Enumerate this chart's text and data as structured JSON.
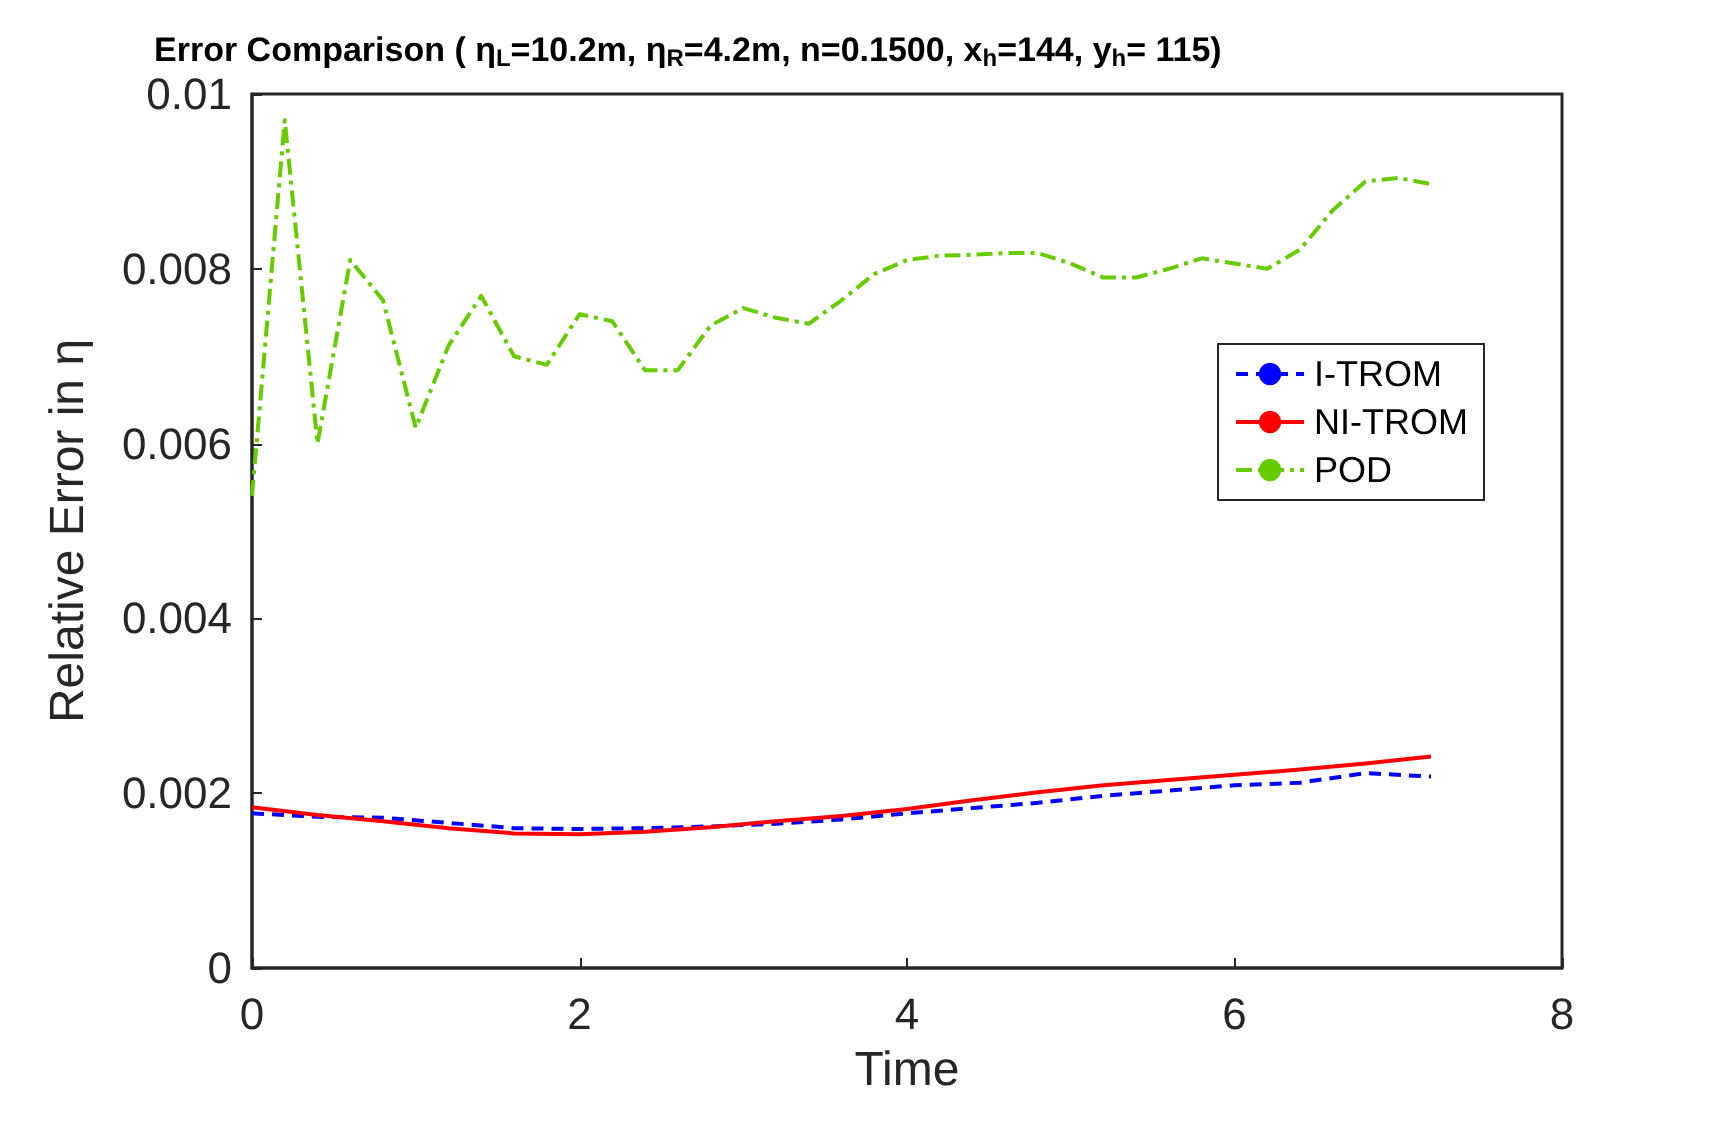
{
  "chart_data": {
    "type": "line",
    "title": "Error Comparison ( η$_{L}$=10.2m, η$_{R}$=4.2m, n=0.1500, x$_{h}$=144, y$_{h}$= 115)",
    "xlabel": "Time",
    "ylabel": "Relative Error in η",
    "xlim": [
      0,
      8
    ],
    "xticks": [
      0,
      2,
      4,
      6,
      8
    ],
    "ylim": [
      0,
      0.01
    ],
    "yticks": [
      0,
      0.002,
      0.004,
      0.006,
      0.008,
      0.01
    ],
    "grid": false,
    "legend": "right",
    "marker": "none",
    "series": [
      {
        "name": "I-TROM",
        "color": "#0000ff",
        "line_style": "dashed",
        "x": [
          0,
          0.4,
          0.8,
          1.2,
          1.6,
          2.0,
          2.4,
          2.8,
          3.2,
          3.6,
          4.0,
          4.4,
          4.8,
          5.2,
          5.6,
          6.0,
          6.4,
          6.8,
          7.2
        ],
        "values": [
          0.00177,
          0.00173,
          0.00172,
          0.00166,
          0.0016,
          0.00159,
          0.0016,
          0.00162,
          0.00165,
          0.0017,
          0.00177,
          0.00183,
          0.00189,
          0.00197,
          0.00203,
          0.00209,
          0.00212,
          0.00223,
          0.00219
        ]
      },
      {
        "name": "NI-TROM",
        "color": "#ff0000",
        "line_style": "solid",
        "x": [
          0,
          0.4,
          0.8,
          1.2,
          1.6,
          2.0,
          2.4,
          2.8,
          3.2,
          3.6,
          4.0,
          4.4,
          4.8,
          5.2,
          5.6,
          6.0,
          6.4,
          6.8,
          7.2
        ],
        "values": [
          0.00184,
          0.00175,
          0.00168,
          0.0016,
          0.00154,
          0.00153,
          0.00156,
          0.00161,
          0.00168,
          0.00174,
          0.00182,
          0.00192,
          0.00201,
          0.00209,
          0.00215,
          0.00221,
          0.00227,
          0.00234,
          0.00242
        ]
      },
      {
        "name": "POD",
        "color": "#66cc00",
        "line_style": "dashdot",
        "x": [
          0,
          0.2,
          0.4,
          0.6,
          0.8,
          1.0,
          1.2,
          1.4,
          1.6,
          1.8,
          2.0,
          2.2,
          2.4,
          2.6,
          2.8,
          3.0,
          3.2,
          3.4,
          3.6,
          3.8,
          4.0,
          4.2,
          4.4,
          4.6,
          4.8,
          5.0,
          5.2,
          5.4,
          5.6,
          5.8,
          6.0,
          6.2,
          6.4,
          6.6,
          6.8,
          7.0,
          7.2
        ],
        "values": [
          0.0054,
          0.0097,
          0.006,
          0.0081,
          0.00764,
          0.00618,
          0.00712,
          0.00769,
          0.007,
          0.0069,
          0.00748,
          0.0074,
          0.00684,
          0.00684,
          0.00735,
          0.00755,
          0.00744,
          0.00737,
          0.00764,
          0.00794,
          0.0081,
          0.00815,
          0.00816,
          0.00818,
          0.00818,
          0.00806,
          0.0079,
          0.0079,
          0.008,
          0.00812,
          0.00806,
          0.008,
          0.00822,
          0.00867,
          0.009,
          0.00904,
          0.00897
        ]
      }
    ]
  }
}
